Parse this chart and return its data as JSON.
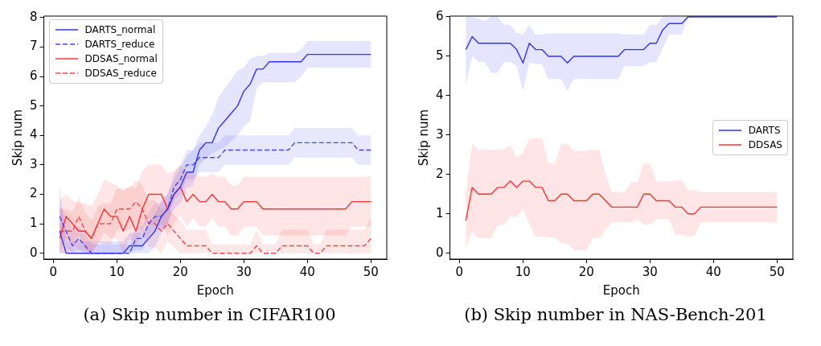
{
  "chart_data": [
    {
      "type": "line",
      "title": "(a) Skip number in CIFAR100",
      "xlabel": "Epoch",
      "ylabel": "Skip num",
      "legend": "top left",
      "grid": false,
      "x": [
        1,
        2,
        3,
        4,
        5,
        6,
        7,
        8,
        9,
        10,
        11,
        12,
        13,
        14,
        15,
        16,
        17,
        18,
        19,
        20,
        21,
        22,
        23,
        24,
        25,
        26,
        27,
        28,
        29,
        30,
        31,
        32,
        33,
        34,
        35,
        36,
        37,
        38,
        39,
        40,
        41,
        42,
        43,
        44,
        45,
        46,
        47,
        48,
        49,
        50
      ],
      "xlim": [
        -1.5,
        52.5
      ],
      "xticks": [
        0,
        10,
        20,
        30,
        40,
        50
      ],
      "ylim": [
        -0.2,
        8.05
      ],
      "yticks": [
        0,
        1,
        2,
        3,
        4,
        5,
        6,
        7,
        8
      ],
      "series": [
        {
          "name": "DARTS_normal",
          "color": "#3333ff",
          "line_style": "solid",
          "values": [
            0.75,
            0,
            0,
            0,
            0,
            0,
            0,
            0,
            0,
            0,
            0,
            0.25,
            0.25,
            0.25,
            0.5,
            0.75,
            1.25,
            1.5,
            2,
            2.25,
            2.75,
            2.75,
            3.5,
            3.75,
            3.75,
            4.25,
            4.5,
            4.75,
            5,
            5.5,
            5.75,
            6.25,
            6.25,
            6.5,
            6.5,
            6.5,
            6.5,
            6.5,
            6.5,
            6.75,
            6.75,
            6.75,
            6.75,
            6.75,
            6.75,
            6.75,
            6.75,
            6.75,
            6.75,
            6.75
          ],
          "upper": [
            2.3,
            0.4,
            0.4,
            0.4,
            0.4,
            0.4,
            0.4,
            0.4,
            0.4,
            0.4,
            0.4,
            0.7,
            0.7,
            0.7,
            1,
            1.3,
            1.8,
            2,
            2.5,
            2.9,
            3.3,
            3.5,
            4,
            4.3,
            4.7,
            5.3,
            5.6,
            5.9,
            6.2,
            6.3,
            6.6,
            6.7,
            6.7,
            6.8,
            6.8,
            6.8,
            6.8,
            6.8,
            6.9,
            7.2,
            7.2,
            7.2,
            7.2,
            7.2,
            7.2,
            7.2,
            7.2,
            7.2,
            7.2,
            7.2
          ],
          "lower": [
            0,
            0,
            0,
            0,
            0,
            0,
            0,
            0,
            0,
            0,
            0,
            0,
            0,
            0,
            0,
            0.2,
            0.7,
            1,
            1.5,
            1.7,
            2.2,
            2.3,
            3,
            3.2,
            3.4,
            3.5,
            3.6,
            3.8,
            4,
            4.3,
            4.5,
            5.6,
            5.8,
            5.8,
            5.8,
            5.8,
            5.8,
            5.8,
            6,
            6.3,
            6.3,
            6.3,
            6.3,
            6.3,
            6.3,
            6.3,
            6.3,
            6.3,
            6.3,
            6.3
          ]
        },
        {
          "name": "DARTS_reduce",
          "color": "#4848f2",
          "line_style": "dashed",
          "values": [
            1.25,
            0.75,
            0.25,
            0.5,
            0.25,
            0,
            0,
            0,
            0,
            0,
            0,
            0,
            0.5,
            0.5,
            1,
            1.25,
            1.25,
            1.5,
            2.25,
            2.5,
            3,
            3,
            3.25,
            3.25,
            3.25,
            3.25,
            3.5,
            3.5,
            3.5,
            3.5,
            3.5,
            3.5,
            3.5,
            3.5,
            3.5,
            3.5,
            3.5,
            3.75,
            3.75,
            3.75,
            3.75,
            3.75,
            3.75,
            3.75,
            3.75,
            3.75,
            3.75,
            3.5,
            3.5,
            3.5
          ],
          "upper": [
            1.6,
            1.3,
            0.8,
            0.9,
            0.7,
            0.3,
            0.3,
            0.3,
            0.3,
            0.3,
            0.3,
            0.3,
            0.9,
            0.9,
            1.4,
            1.7,
            1.7,
            2,
            2.7,
            3,
            3.5,
            3.5,
            3.75,
            3.75,
            3.75,
            3.75,
            4,
            4,
            4,
            4,
            4,
            4,
            4,
            4,
            4,
            4,
            4,
            4.25,
            4.25,
            4.25,
            4.25,
            4.25,
            4.25,
            4.25,
            4.25,
            4.25,
            4.25,
            4,
            4,
            4
          ],
          "lower": [
            0.9,
            0.2,
            0,
            0.1,
            0,
            0,
            0,
            0,
            0,
            0,
            0,
            0,
            0.1,
            0.1,
            0.6,
            0.8,
            0.8,
            1,
            1.8,
            2,
            2.5,
            2.5,
            2.75,
            2.75,
            2.75,
            2.75,
            3,
            3,
            3,
            3,
            3,
            3,
            3,
            3,
            3,
            3,
            3,
            3.25,
            3.25,
            3.25,
            3.25,
            3.25,
            3.25,
            3.25,
            3.25,
            3.25,
            3.25,
            3,
            3,
            3
          ]
        },
        {
          "name": "DDSAS_normal",
          "color": "#ff3333",
          "line_style": "solid",
          "values": [
            0.5,
            1.25,
            1,
            0.75,
            0.75,
            0.5,
            1,
            1.5,
            1.25,
            1.25,
            0.75,
            1.25,
            0.75,
            1.5,
            2,
            2,
            2,
            1.5,
            2,
            2.25,
            1.75,
            2,
            1.75,
            1.75,
            2,
            1.75,
            1.75,
            1.5,
            1.5,
            1.75,
            1.75,
            1.75,
            1.5,
            1.5,
            1.5,
            1.5,
            1.5,
            1.5,
            1.5,
            1.5,
            1.5,
            1.5,
            1.5,
            1.5,
            1.5,
            1.5,
            1.75,
            1.75,
            1.75,
            1.75
          ],
          "upper": [
            1.8,
            2,
            1.8,
            1.7,
            1.7,
            1.6,
            2,
            2.5,
            2.4,
            2.3,
            2.1,
            2.3,
            2.2,
            2.8,
            3,
            3,
            3,
            2.7,
            2.8,
            3,
            2.7,
            2.7,
            2.6,
            2.6,
            2.7,
            2.6,
            2.6,
            2.3,
            2.3,
            2.6,
            2.6,
            2.6,
            2.6,
            2.6,
            2.6,
            2.6,
            2.6,
            2.6,
            2.6,
            2.6,
            2.6,
            2.6,
            2.6,
            2.6,
            2.6,
            2.6,
            2.6,
            2.6,
            2.6,
            2.6
          ],
          "lower": [
            0,
            0.5,
            0.3,
            0.1,
            0.1,
            0,
            0.3,
            0.7,
            0.5,
            0.5,
            0,
            0.5,
            0.2,
            0.8,
            1.1,
            1,
            1,
            0.6,
            1,
            1.3,
            0.9,
            1.2,
            0.9,
            0.9,
            1.2,
            0.9,
            0.9,
            0.6,
            0.6,
            0.9,
            0.9,
            0.9,
            0.6,
            0.6,
            0.6,
            0.6,
            0.6,
            0.6,
            0.6,
            0.6,
            0.6,
            0.6,
            0.6,
            0.6,
            0.6,
            0.6,
            0.9,
            0.9,
            0.9,
            0.9
          ]
        },
        {
          "name": "DDSAS_reduce",
          "color": "#f24848",
          "line_style": "dashed",
          "values": [
            0.75,
            0.75,
            0.75,
            1.25,
            0.75,
            0.5,
            1,
            1,
            1,
            1.5,
            1.5,
            1.5,
            1.75,
            1.5,
            1,
            1,
            0.75,
            1,
            0.75,
            0.5,
            0.25,
            0.25,
            0.25,
            0.25,
            0,
            0,
            0,
            0,
            0,
            0,
            0,
            0.25,
            0,
            0,
            0,
            0.25,
            0.25,
            0.25,
            0.25,
            0.25,
            0,
            0,
            0.25,
            0.25,
            0.25,
            0.25,
            0.25,
            0.25,
            0.25,
            0.5
          ],
          "upper": [
            1.5,
            1.5,
            1.4,
            1.9,
            1.4,
            1.1,
            1.6,
            1.7,
            1.7,
            2.2,
            2.2,
            2.2,
            2.5,
            2.3,
            1.8,
            1.8,
            1.5,
            1.6,
            1.3,
            1.1,
            0.8,
            0.8,
            0.8,
            0.8,
            0.3,
            0.3,
            0.3,
            0.3,
            0.3,
            0.3,
            0.3,
            0.8,
            0.3,
            0.3,
            0.3,
            0.8,
            0.8,
            0.8,
            0.8,
            0.8,
            0.3,
            0.3,
            0.8,
            0.8,
            0.8,
            0.8,
            0.8,
            0.8,
            0.8,
            1.2
          ],
          "lower": [
            0,
            0,
            0.1,
            0.6,
            0.1,
            0,
            0.4,
            0.3,
            0.3,
            0.8,
            0.8,
            0.8,
            1,
            0.7,
            0.2,
            0.2,
            0,
            0.4,
            0.2,
            0,
            0,
            0,
            0,
            0,
            0,
            0,
            0,
            0,
            0,
            0,
            0,
            0,
            0,
            0,
            0,
            0,
            0,
            0,
            0,
            0,
            0,
            0,
            0,
            0,
            0,
            0,
            0,
            0,
            0,
            0
          ]
        }
      ]
    },
    {
      "type": "line",
      "title": "(b) Skip number in NAS-Bench-201",
      "xlabel": "Epoch",
      "ylabel": "Skip num",
      "legend": "center right",
      "grid": false,
      "x": [
        1,
        2,
        3,
        4,
        5,
        6,
        7,
        8,
        9,
        10,
        11,
        12,
        13,
        14,
        15,
        16,
        17,
        18,
        19,
        20,
        21,
        22,
        23,
        24,
        25,
        26,
        27,
        28,
        29,
        30,
        31,
        32,
        33,
        34,
        35,
        36,
        37,
        38,
        39,
        40,
        41,
        42,
        43,
        44,
        45,
        46,
        47,
        48,
        49,
        50
      ],
      "xlim": [
        -1.5,
        52.5
      ],
      "xticks": [
        0,
        10,
        20,
        30,
        40,
        50
      ],
      "ylim": [
        -0.15,
        6.02
      ],
      "yticks": [
        0,
        1,
        2,
        3,
        4,
        5,
        6
      ],
      "series": [
        {
          "name": "DARTS",
          "color": "#3333ff",
          "line_style": "solid",
          "values": [
            5.17,
            5.5,
            5.33,
            5.33,
            5.33,
            5.33,
            5.33,
            5.33,
            5.17,
            4.83,
            5.33,
            5.17,
            5.17,
            5,
            5,
            5,
            4.83,
            5,
            5,
            5,
            5,
            5,
            5,
            5,
            5,
            5.17,
            5.17,
            5.17,
            5.17,
            5.33,
            5.33,
            5.67,
            5.83,
            5.83,
            5.83,
            6,
            6,
            6,
            6,
            6,
            6,
            6,
            6,
            6,
            6,
            6,
            6,
            6,
            6,
            6
          ],
          "upper": [
            6,
            6,
            5.95,
            5.9,
            6,
            6,
            5.8,
            5.8,
            5.6,
            5.55,
            5.8,
            5.55,
            5.55,
            5.58,
            5.58,
            5.58,
            5.58,
            5.58,
            5.58,
            5.58,
            5.58,
            5.58,
            5.58,
            5.58,
            5.58,
            5.55,
            5.55,
            5.55,
            5.55,
            5.8,
            5.8,
            6,
            6,
            6,
            6,
            6,
            6,
            6,
            6,
            6,
            6,
            6,
            6,
            6,
            6,
            6,
            6,
            6,
            6,
            6
          ],
          "lower": [
            4.25,
            5,
            4.85,
            4.85,
            4.58,
            4.58,
            4.85,
            4.85,
            4.75,
            4.12,
            4.85,
            4.8,
            4.8,
            4.42,
            4.42,
            4.42,
            4.12,
            4.42,
            4.42,
            4.42,
            4.42,
            4.42,
            4.42,
            4.42,
            4.42,
            4.75,
            4.75,
            4.75,
            4.75,
            4.85,
            4.85,
            5.2,
            5.55,
            5.55,
            5.55,
            6,
            6,
            6,
            6,
            6,
            6,
            6,
            6,
            6,
            6,
            6,
            6,
            6,
            6,
            6
          ]
        },
        {
          "name": "DDSAS",
          "color": "#ff3333",
          "line_style": "solid",
          "values": [
            0.83,
            1.67,
            1.5,
            1.5,
            1.5,
            1.67,
            1.67,
            1.83,
            1.67,
            1.83,
            1.83,
            1.67,
            1.67,
            1.33,
            1.33,
            1.5,
            1.5,
            1.33,
            1.33,
            1.33,
            1.5,
            1.5,
            1.33,
            1.17,
            1.17,
            1.17,
            1.17,
            1.17,
            1.5,
            1.5,
            1.33,
            1.33,
            1.33,
            1.17,
            1.17,
            1,
            1,
            1.17,
            1.17,
            1.17,
            1.17,
            1.17,
            1.17,
            1.17,
            1.17,
            1.17,
            1.17,
            1.17,
            1.17,
            1.17
          ],
          "upper": [
            1.5,
            2.78,
            2.63,
            2.63,
            2.63,
            2.63,
            2.63,
            2.75,
            2.43,
            2.55,
            2.9,
            2.92,
            2.92,
            2.28,
            2.28,
            2.77,
            2.77,
            2.6,
            2.6,
            2.6,
            2.63,
            2.63,
            2,
            1.55,
            1.55,
            1.55,
            1.8,
            1.8,
            2.27,
            2.27,
            1.82,
            1.82,
            1.82,
            1.85,
            1.85,
            1.6,
            1.6,
            1.55,
            1.55,
            1.55,
            1.55,
            1.55,
            1.55,
            1.55,
            1.55,
            1.55,
            1.55,
            1.55,
            1.55,
            1.55
          ],
          "lower": [
            0.15,
            0.55,
            0.38,
            0.38,
            0.38,
            0.72,
            0.72,
            0.93,
            0.92,
            1.12,
            0.75,
            0.42,
            0.42,
            0.4,
            0.4,
            0.25,
            0.25,
            0.08,
            0.08,
            0.08,
            0.38,
            0.38,
            0.6,
            0.78,
            0.78,
            0.78,
            0.78,
            0.85,
            0.73,
            0.73,
            0.86,
            0.86,
            0.86,
            0.47,
            0.47,
            0.43,
            0.43,
            0.78,
            0.78,
            0.78,
            0.78,
            0.78,
            0.78,
            0.78,
            0.78,
            0.78,
            0.78,
            0.78,
            0.78,
            0.78
          ]
        }
      ]
    }
  ]
}
